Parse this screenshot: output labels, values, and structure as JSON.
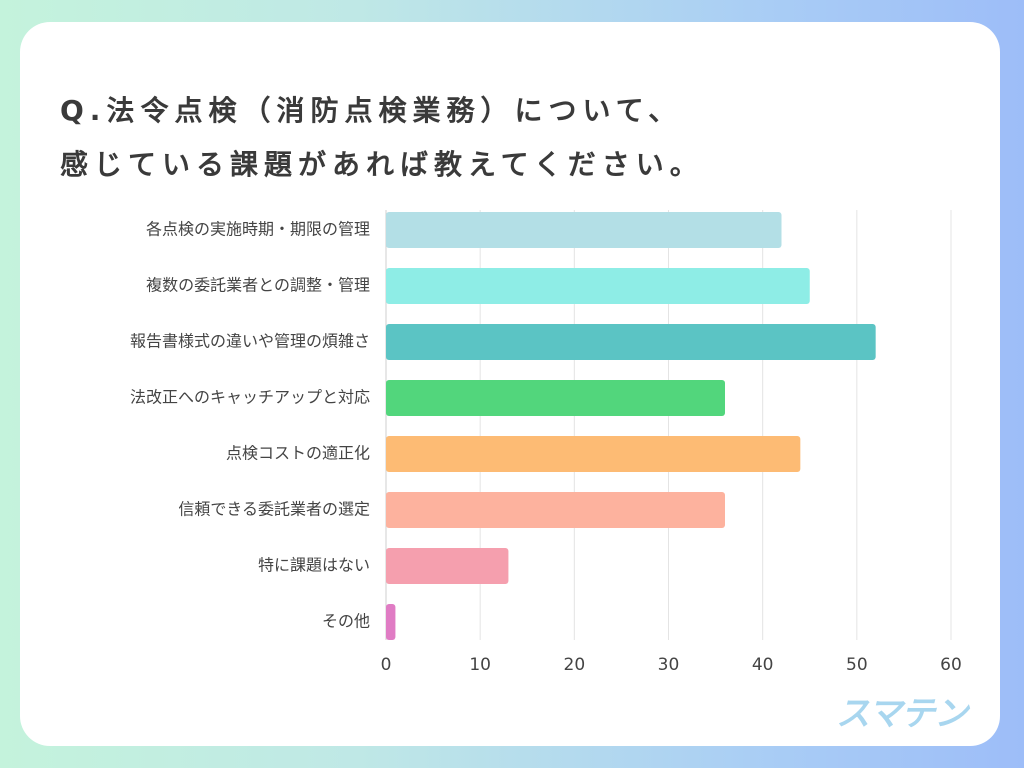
{
  "title_line1": "Q.法令点検（消防点検業務）について、",
  "title_line2": "感じている課題があれば教えてください。",
  "logo_text": "スマテン",
  "chart_data": {
    "type": "bar",
    "orientation": "horizontal",
    "categories": [
      "各点検の実施時期・期限の管理",
      "複数の委託業者との調整・管理",
      "報告書様式の違いや管理の煩雑さ",
      "法改正へのキャッチアップと対応",
      "点検コストの適正化",
      "信頼できる委託業者の選定",
      "特に課題はない",
      "その他"
    ],
    "values": [
      42,
      45,
      52,
      36,
      44,
      36,
      13,
      1
    ],
    "colors": [
      "#b3dfe6",
      "#8eede6",
      "#5bc4c4",
      "#52d67c",
      "#fdbb74",
      "#fdb29e",
      "#f59fae",
      "#e07cc4"
    ],
    "xlim": [
      0,
      60
    ],
    "xticks": [
      0,
      10,
      20,
      30,
      40,
      50,
      60
    ],
    "grid": true,
    "title": "",
    "xlabel": "",
    "ylabel": ""
  }
}
